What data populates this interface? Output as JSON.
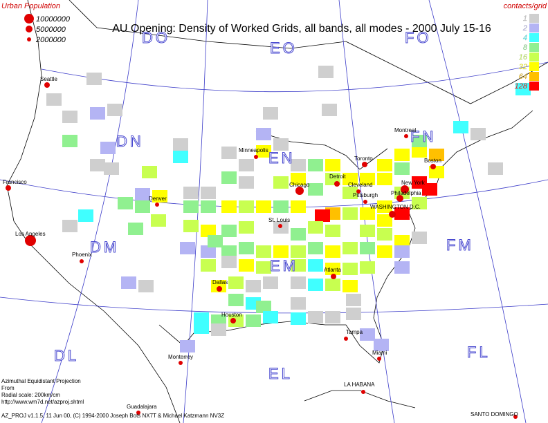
{
  "title": "AU Opening: Density of Worked Grids, all bands, all modes - 2000 July 15-16",
  "population_legend": {
    "title": "Urban Population",
    "levels": [
      10000000,
      5000000,
      2000000
    ]
  },
  "density_legend": {
    "title": "contacts/grid",
    "levels": [
      1,
      2,
      4,
      8,
      16,
      32,
      64,
      128
    ],
    "colors": [
      "#cfcfcf",
      "#b4b4f4",
      "#40ffff",
      "#90f090",
      "#c8ff50",
      "#ffff00",
      "#ffc000",
      "#ff0000"
    ]
  },
  "grid_squares": [
    "DO",
    "EO",
    "FO",
    "DN",
    "EN",
    "FN",
    "DM",
    "EM",
    "FM",
    "DL",
    "EL",
    "FL"
  ],
  "cities": [
    "Seattle",
    "Francisco",
    "Los Angeles",
    "Phoenix",
    "Denver",
    "Minneapolis",
    "Chicago",
    "Detroit",
    "Cleveland",
    "Pittsburgh",
    "Toronto",
    "Montreal",
    "Boston",
    "New York",
    "Philadelphia",
    "WASHINGTON D.C.",
    "St. Louis",
    "Atlanta",
    "Dallas",
    "Houston",
    "Tampa",
    "Miami",
    "Monterrey",
    "LA HABANA",
    "Guadalajara",
    "SANTO DOMINGO"
  ],
  "cells": [
    1,
    1,
    1,
    2,
    1,
    8,
    2,
    1,
    1,
    16,
    4,
    2,
    32,
    8,
    8,
    16,
    4,
    1,
    8,
    1,
    1,
    8,
    8,
    16,
    8,
    1,
    2,
    1,
    32,
    1,
    1,
    16,
    1,
    32,
    8,
    32,
    16,
    8,
    32,
    16,
    32,
    32,
    32,
    32,
    8,
    32,
    64,
    128,
    128,
    32,
    8,
    4,
    1,
    16,
    32,
    32,
    128,
    16,
    32,
    16,
    64,
    128,
    32,
    8,
    32,
    16,
    32,
    32,
    8,
    16,
    1,
    8,
    16,
    16,
    16,
    16,
    32,
    1,
    2,
    32,
    8,
    16,
    32,
    8,
    16,
    32,
    16,
    8,
    8,
    2,
    2,
    16,
    1,
    32,
    16,
    16,
    4,
    32,
    16,
    16,
    2,
    32,
    16,
    1,
    1,
    1,
    4,
    16,
    32,
    4,
    8,
    8,
    1,
    1,
    4,
    8,
    16,
    8,
    4,
    4,
    1,
    1,
    1,
    4,
    1,
    2,
    2,
    1,
    1,
    1,
    2,
    1,
    1,
    8,
    4,
    1,
    2
  ],
  "footer": [
    "Azimuthal Equidistant Projection",
    "From",
    "Radial scale: 200km/cm",
    "http://www.wm7d.net/azproj.shtml",
    "AZ_PROJ v1.1.5, 11 Jun 00, (C) 1994-2000 Joseph Bots NX7T & Michael Katzmann NV3Z"
  ]
}
